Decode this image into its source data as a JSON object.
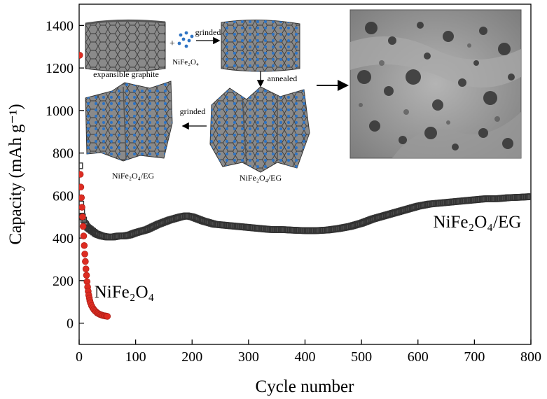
{
  "chart_data": {
    "type": "scatter",
    "xlabel": "Cycle number",
    "ylabel": "Capacity (mAh g⁻¹)",
    "xlim": [
      0,
      800
    ],
    "ylim": [
      -100,
      1500
    ],
    "xticks": [
      0,
      100,
      200,
      300,
      400,
      500,
      600,
      700,
      800
    ],
    "yticks": [
      0,
      200,
      400,
      600,
      800,
      1000,
      1200,
      1400
    ],
    "grid": false,
    "series": [
      {
        "name": "NiFe2O4/EG",
        "marker": "square-open",
        "color": "#333333",
        "x": [
          1,
          3,
          6,
          10,
          15,
          20,
          30,
          40,
          50,
          60,
          70,
          80,
          90,
          100,
          120,
          140,
          160,
          180,
          190,
          200,
          220,
          240,
          260,
          280,
          300,
          320,
          340,
          360,
          380,
          400,
          420,
          440,
          460,
          480,
          500,
          520,
          540,
          560,
          580,
          600,
          620,
          640,
          660,
          680,
          700,
          720,
          740,
          760,
          780,
          800
        ],
        "y": [
          740,
          560,
          500,
          470,
          450,
          440,
          420,
          410,
          405,
          405,
          410,
          410,
          415,
          425,
          440,
          465,
          485,
          500,
          505,
          500,
          480,
          465,
          460,
          455,
          450,
          445,
          440,
          440,
          437,
          435,
          435,
          438,
          445,
          455,
          470,
          490,
          505,
          520,
          535,
          550,
          560,
          565,
          570,
          575,
          580,
          585,
          585,
          590,
          592,
          595
        ]
      },
      {
        "name": "NiFe2O4",
        "marker": "circle-filled",
        "color": "#dd2c22",
        "x": [
          1,
          2,
          3,
          4,
          5,
          6,
          7,
          8,
          9,
          10,
          11,
          12,
          13,
          14,
          15,
          16,
          17,
          18,
          19,
          20,
          22,
          24,
          26,
          28,
          30,
          32,
          34,
          36,
          38,
          40,
          42,
          44,
          46,
          48,
          50
        ],
        "y": [
          1260,
          700,
          640,
          590,
          545,
          500,
          455,
          410,
          365,
          325,
          290,
          255,
          225,
          195,
          170,
          150,
          132,
          118,
          105,
          95,
          82,
          72,
          64,
          58,
          53,
          48,
          45,
          42,
          40,
          38,
          36,
          35,
          34,
          33,
          32
        ]
      }
    ],
    "annotations": [
      {
        "text": "NiFe₂O₄/EG",
        "x": 705,
        "y": 450
      },
      {
        "text": "NiFe₂O₄",
        "x": 80,
        "y": 120
      }
    ],
    "inset": {
      "labels": {
        "expansible_graphite": "expansible graphite",
        "plus": "+",
        "nife2o4": "NiFe₂O₄",
        "grinded_1": "grinded",
        "annealed": "annealed",
        "grinded_2": "grinded",
        "composite_left": "NiFe₂O₄/EG",
        "composite_right": "NiFe₂O₄/EG"
      }
    }
  }
}
